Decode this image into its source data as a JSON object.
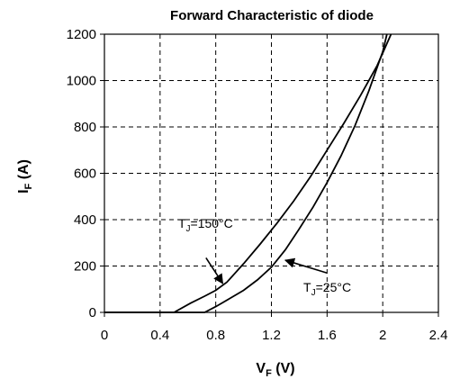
{
  "chart_data": {
    "type": "line",
    "title": "Forward Characteristic of diode",
    "xlabel": {
      "main": "V",
      "sub": "F",
      "unit": " (V)"
    },
    "ylabel": {
      "main": "I",
      "sub": "F",
      "unit": " (A)"
    },
    "xlim": [
      0,
      2.4
    ],
    "ylim": [
      0,
      1200
    ],
    "xticks": [
      0,
      0.4,
      0.8,
      1.2,
      1.6,
      2,
      2.4
    ],
    "xtick_labels": [
      "0",
      "0.4",
      "0.8",
      "1.2",
      "1.6",
      "2",
      "2.4"
    ],
    "yticks": [
      0,
      200,
      400,
      600,
      800,
      1000,
      1200
    ],
    "ytick_labels": [
      "0",
      "200",
      "400",
      "600",
      "800",
      "1000",
      "1200"
    ],
    "grid": true,
    "series": [
      {
        "x": [
          0,
          0.5,
          0.62,
          0.72,
          0.8,
          0.88,
          1.0,
          1.12,
          1.24,
          1.36,
          1.48,
          1.6,
          1.72,
          1.84,
          1.96,
          2.06
        ],
        "y": [
          0,
          0,
          40,
          70,
          95,
          130,
          210,
          295,
          385,
          480,
          585,
          700,
          815,
          935,
          1065,
          1200
        ]
      },
      {
        "x": [
          0,
          0.72,
          0.8,
          0.9,
          1.0,
          1.1,
          1.2,
          1.3,
          1.4,
          1.5,
          1.6,
          1.7,
          1.8,
          1.9,
          2.0,
          2.03
        ],
        "y": [
          0,
          0,
          25,
          60,
          95,
          140,
          195,
          270,
          360,
          455,
          560,
          675,
          805,
          955,
          1125,
          1200
        ]
      }
    ],
    "annotations": [
      {
        "main": "T",
        "sub": "J",
        "rest": "=150°C",
        "text_x": 0.53,
        "text_y": 365,
        "arrow_from": [
          0.73,
          235
        ],
        "arrow_to": [
          0.85,
          125
        ]
      },
      {
        "main": "T",
        "sub": "J",
        "rest": "=25°C",
        "text_x": 1.43,
        "text_y": 90,
        "arrow_from": [
          1.6,
          170
        ],
        "arrow_to": [
          1.3,
          225
        ]
      }
    ]
  }
}
